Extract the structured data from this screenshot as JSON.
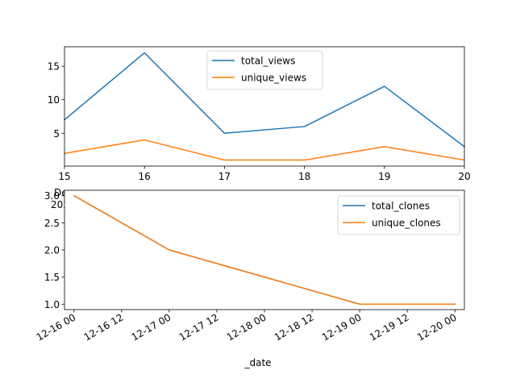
{
  "colors": {
    "series_1": "#1f77b4",
    "series_2": "#ff7f0e"
  },
  "chart_data": [
    {
      "type": "line",
      "x": [
        15,
        16,
        17,
        18,
        19,
        20
      ],
      "xlim": [
        15,
        20
      ],
      "ylim": [
        0.1,
        17.9
      ],
      "x_tick_labels": [
        "15",
        "16",
        "17",
        "18",
        "19",
        "20"
      ],
      "y_ticks": [
        5,
        10,
        15
      ],
      "y_tick_labels": [
        "5",
        "10",
        "15"
      ],
      "x_offset_text": [
        "Dec",
        "2020"
      ],
      "series": [
        {
          "name": "total_views",
          "values": [
            7,
            17,
            5,
            6,
            12,
            3
          ]
        },
        {
          "name": "unique_views",
          "values": [
            2,
            4,
            1,
            1,
            3,
            1
          ]
        }
      ],
      "legend": "top-center",
      "grid": false
    },
    {
      "type": "line",
      "x": [
        "2020-12-16 00:00",
        "2020-12-17 00:00",
        "2020-12-18 00:00",
        "2020-12-19 00:00",
        "2020-12-20 00:00"
      ],
      "xlim": [
        "2020-12-15 21:36",
        "2020-12-20 02:24"
      ],
      "ylim": [
        0.9,
        3.1
      ],
      "x_ticks": [
        "2020-12-16 00:00",
        "2020-12-16 12:00",
        "2020-12-17 00:00",
        "2020-12-17 12:00",
        "2020-12-18 00:00",
        "2020-12-18 12:00",
        "2020-12-19 00:00",
        "2020-12-19 12:00",
        "2020-12-20 00:00"
      ],
      "x_tick_labels": [
        "12-16 00",
        "12-16 12",
        "12-17 00",
        "12-17 12",
        "12-18 00",
        "12-18 12",
        "12-19 00",
        "12-19 12",
        "12-20 00"
      ],
      "y_ticks": [
        1.0,
        1.5,
        2.0,
        2.5,
        3.0
      ],
      "y_tick_labels": [
        "1.0",
        "1.5",
        "2.0",
        "2.5",
        "3.0"
      ],
      "xlabel": "_date",
      "series": [
        {
          "name": "total_clones",
          "values": [
            3,
            2,
            1.5,
            1,
            1
          ]
        },
        {
          "name": "unique_clones",
          "values": [
            3,
            2,
            1.5,
            1,
            1
          ]
        }
      ],
      "legend": "top-right",
      "grid": false
    }
  ]
}
